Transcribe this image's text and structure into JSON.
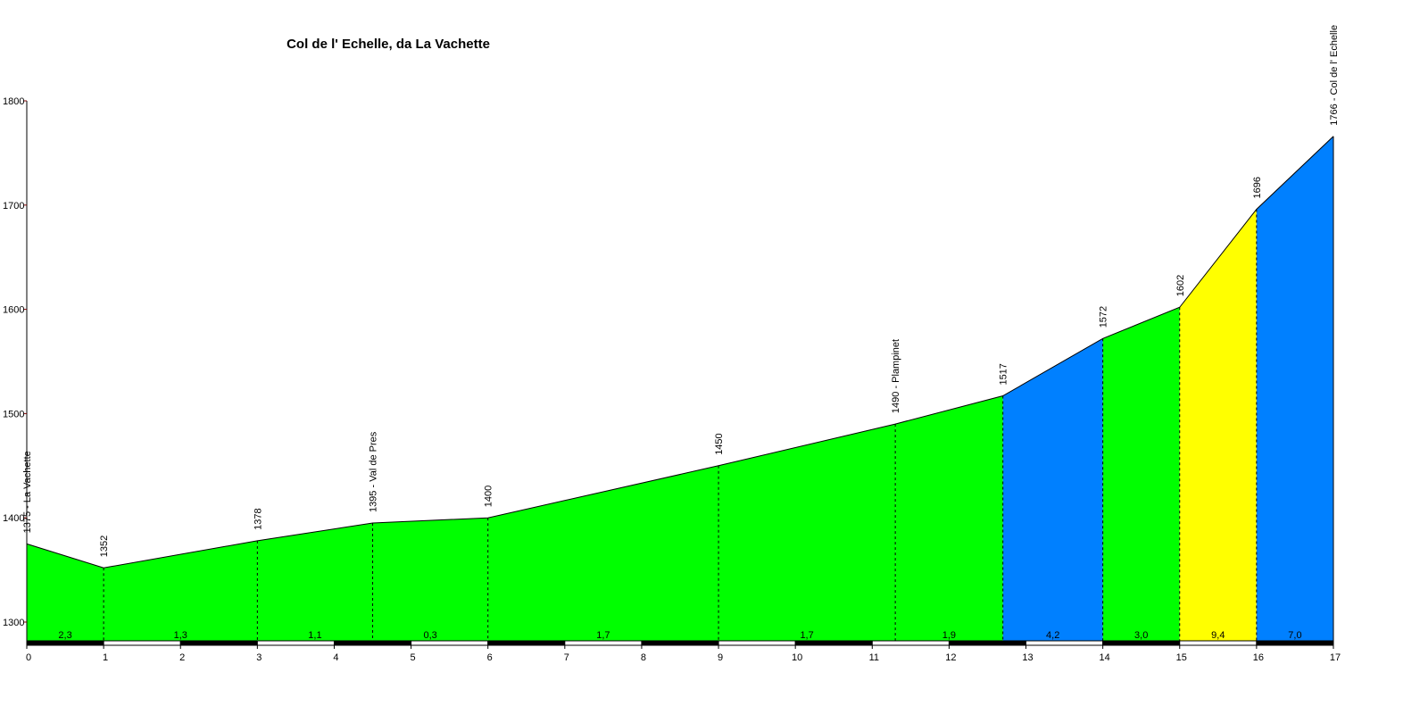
{
  "chart_data": {
    "type": "area",
    "title": "Col de l' Echelle, da La Vachette",
    "xlabel": "",
    "ylabel": "",
    "xlim": [
      0,
      17
    ],
    "ylim": [
      1280,
      1800
    ],
    "x_ticks": [
      0,
      1,
      2,
      3,
      4,
      5,
      6,
      7,
      8,
      9,
      10,
      11,
      12,
      13,
      14,
      15,
      16,
      17
    ],
    "y_ticks": [
      1300,
      1400,
      1500,
      1600,
      1700,
      1800
    ],
    "grid": false,
    "profile": [
      {
        "km": 0,
        "alt": 1375,
        "label": "1375 - La Vachette"
      },
      {
        "km": 1,
        "alt": 1352,
        "label": "1352"
      },
      {
        "km": 3,
        "alt": 1378,
        "label": "1378"
      },
      {
        "km": 4.5,
        "alt": 1395,
        "label": "1395 - Val de Pres"
      },
      {
        "km": 6,
        "alt": 1400,
        "label": "1400"
      },
      {
        "km": 9,
        "alt": 1450,
        "label": "1450"
      },
      {
        "km": 11.3,
        "alt": 1490,
        "label": "1490 - Plampinet"
      },
      {
        "km": 12.7,
        "alt": 1517,
        "label": "1517"
      },
      {
        "km": 14,
        "alt": 1572,
        "label": "1572"
      },
      {
        "km": 15,
        "alt": 1602,
        "label": "1602"
      },
      {
        "km": 16,
        "alt": 1696,
        "label": "1696"
      },
      {
        "km": 17,
        "alt": 1766,
        "label": "1766 - Col de l' Echelle"
      }
    ],
    "segments": [
      {
        "from": 0,
        "to": 1,
        "gradient": "2,3",
        "color": "#00ff00"
      },
      {
        "from": 1,
        "to": 3,
        "gradient": "1,3",
        "color": "#00ff00"
      },
      {
        "from": 3,
        "to": 4.5,
        "gradient": "1,1",
        "color": "#00ff00"
      },
      {
        "from": 4.5,
        "to": 6,
        "gradient": "0,3",
        "color": "#00ff00"
      },
      {
        "from": 6,
        "to": 9,
        "gradient": "1,7",
        "color": "#00ff00"
      },
      {
        "from": 9,
        "to": 11.3,
        "gradient": "1,7",
        "color": "#00ff00"
      },
      {
        "from": 11.3,
        "to": 12.7,
        "gradient": "1,9",
        "color": "#00ff00"
      },
      {
        "from": 12.7,
        "to": 14,
        "gradient": "4,2",
        "color": "#0080ff"
      },
      {
        "from": 14,
        "to": 15,
        "gradient": "3,0",
        "color": "#00ff00"
      },
      {
        "from": 15,
        "to": 16,
        "gradient": "9,4",
        "color": "#ffff00"
      },
      {
        "from": 16,
        "to": 17,
        "gradient": "7,0",
        "color": "#0080ff"
      }
    ]
  }
}
